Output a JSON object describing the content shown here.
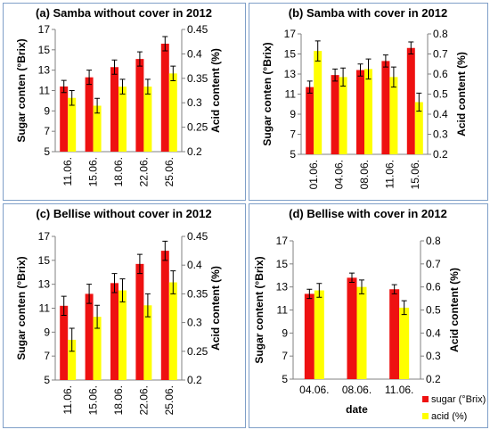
{
  "colors": {
    "sugar": "#ee1111",
    "acid": "#ffff00",
    "frame": "#7f9fc8",
    "axis": "#808080"
  },
  "chart_data": [
    {
      "type": "bar",
      "title": "(a) Samba without cover in 2012",
      "categories": [
        "11.06.",
        "15.06.",
        "18.06.",
        "22.06.",
        "25.06."
      ],
      "ylabel": "Sugar conten (°Brix)",
      "y2label": "Acid content (%)",
      "ylim": [
        5,
        17
      ],
      "yticks": [
        "5",
        "7",
        "9",
        "11",
        "13",
        "15",
        "17"
      ],
      "y2lim": [
        0.2,
        0.45
      ],
      "y2ticks": [
        "0.2",
        "0.25",
        "0.3",
        "0.35",
        "0.4",
        "0.45"
      ],
      "xlabel": "",
      "series": [
        {
          "axis": "left",
          "values": [
            11.4,
            12.3,
            13.3,
            14.1,
            15.6
          ],
          "errors": [
            0.6,
            0.7,
            0.7,
            0.7,
            0.7
          ]
        },
        {
          "axis": "right",
          "values": [
            0.31,
            0.294,
            0.333,
            0.333,
            0.36
          ],
          "errors": [
            0.015,
            0.015,
            0.015,
            0.015,
            0.015
          ]
        }
      ]
    },
    {
      "type": "bar",
      "title": "(b) Samba with cover in 2012",
      "categories": [
        "01.06.",
        "04.06.",
        "08.06.",
        "11.06.",
        "15.06."
      ],
      "ylabel": "Sugar conten (°Brix)",
      "y2label": "Acid content (%)",
      "ylim": [
        5,
        17
      ],
      "yticks": [
        "5",
        "7",
        "9",
        "11",
        "13",
        "15",
        "17"
      ],
      "y2lim": [
        0.2,
        0.8
      ],
      "y2ticks": [
        "0.2",
        "0.3",
        "0.4",
        "0.5",
        "0.6",
        "0.7",
        "0.8"
      ],
      "xlabel": "",
      "series": [
        {
          "axis": "left",
          "values": [
            11.7,
            12.9,
            13.4,
            14.3,
            15.6
          ],
          "errors": [
            0.6,
            0.6,
            0.6,
            0.6,
            0.6
          ]
        },
        {
          "axis": "right",
          "values": [
            0.715,
            0.585,
            0.625,
            0.585,
            0.46
          ],
          "errors": [
            0.05,
            0.045,
            0.05,
            0.05,
            0.045
          ]
        }
      ]
    },
    {
      "type": "bar",
      "title": "(c) Bellise without cover in 2012",
      "categories": [
        "11.06.",
        "15.06.",
        "18.06.",
        "22.06.",
        "25.06."
      ],
      "ylabel": "Sugar conten (°Brix)",
      "y2label": "Acid content (%)",
      "ylim": [
        5,
        17
      ],
      "yticks": [
        "5",
        "7",
        "9",
        "11",
        "13",
        "15",
        "17"
      ],
      "y2lim": [
        0.2,
        0.45
      ],
      "y2ticks": [
        "0.2",
        "0.25",
        "0.3",
        "0.35",
        "0.4",
        "0.45"
      ],
      "xlabel": "",
      "series": [
        {
          "axis": "left",
          "values": [
            11.2,
            12.2,
            13.1,
            14.7,
            15.8
          ],
          "errors": [
            0.8,
            0.8,
            0.8,
            0.8,
            0.8
          ]
        },
        {
          "axis": "right",
          "values": [
            0.27,
            0.31,
            0.356,
            0.33,
            0.37
          ],
          "errors": [
            0.02,
            0.02,
            0.02,
            0.02,
            0.02
          ]
        }
      ]
    },
    {
      "type": "bar",
      "title": "(d) Bellise with cover in 2012",
      "categories": [
        "04.06.",
        "08.06.",
        "11.06."
      ],
      "ylabel": "Sugar content (°Brix)",
      "y2label": "Acid content (%)",
      "ylim": [
        5,
        17
      ],
      "yticks": [
        "5",
        "7",
        "9",
        "11",
        "13",
        "15",
        "17"
      ],
      "y2lim": [
        0.2,
        0.8
      ],
      "y2ticks": [
        "0.2",
        "0.3",
        "0.4",
        "0.5",
        "0.6",
        "0.7",
        "0.8"
      ],
      "xlabel": "date",
      "legend": {
        "position": "bottom-right",
        "labels": [
          "sugar (°Brix)",
          "acid (%)"
        ]
      },
      "series": [
        {
          "axis": "left",
          "values": [
            12.4,
            13.8,
            12.8
          ],
          "errors": [
            0.4,
            0.4,
            0.4
          ]
        },
        {
          "axis": "right",
          "values": [
            0.585,
            0.6,
            0.51
          ],
          "errors": [
            0.03,
            0.03,
            0.03
          ]
        }
      ]
    }
  ]
}
